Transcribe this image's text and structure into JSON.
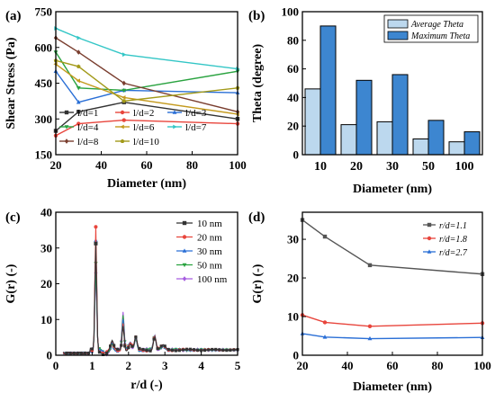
{
  "chart_data": [
    {
      "panel": "(a)",
      "type": "line",
      "xlabel": "Diameter (nm)",
      "ylabel": "Shear Stress (Pa)",
      "xlim": [
        20,
        100
      ],
      "ylim": [
        150,
        750
      ],
      "xticks": [
        20,
        40,
        60,
        80,
        100
      ],
      "yticks": [
        150,
        300,
        450,
        600,
        750
      ],
      "legend_ncol": 3,
      "x": [
        20,
        30,
        50,
        100
      ],
      "series": [
        {
          "name": "l/d=1",
          "color": "#333333",
          "marker": "square",
          "values": [
            250,
            330,
            370,
            300
          ]
        },
        {
          "name": "l/d=2",
          "color": "#e8453c",
          "marker": "circle",
          "values": [
            230,
            280,
            295,
            280
          ]
        },
        {
          "name": "l/d=3",
          "color": "#2a6fd6",
          "marker": "triangle",
          "values": [
            500,
            370,
            420,
            410
          ]
        },
        {
          "name": "l/d=4",
          "color": "#2aa340",
          "marker": "triangle-down",
          "values": [
            580,
            430,
            420,
            500
          ]
        },
        {
          "name": "l/d=6",
          "color": "#c49a1e",
          "marker": "triangle-left",
          "values": [
            530,
            460,
            390,
            320
          ]
        },
        {
          "name": "l/d=7",
          "color": "#33c6c6",
          "marker": "triangle-right",
          "values": [
            680,
            640,
            570,
            510
          ]
        },
        {
          "name": "l/d=8",
          "color": "#7a3e2f",
          "marker": "diamond",
          "values": [
            640,
            580,
            450,
            330
          ]
        },
        {
          "name": "l/d=10",
          "color": "#a39a1a",
          "marker": "pentagon",
          "values": [
            545,
            520,
            375,
            430
          ]
        }
      ]
    },
    {
      "panel": "(b)",
      "type": "bar",
      "xlabel": "Diameter (nm)",
      "ylabel": "Theta (degree)",
      "categories": [
        "10",
        "20",
        "30",
        "50",
        "100"
      ],
      "ylim": [
        0,
        100
      ],
      "yticks": [
        0,
        20,
        40,
        60,
        80,
        100
      ],
      "series": [
        {
          "name": "Average Theta",
          "color": "#bcd8ee",
          "values": [
            46,
            21,
            23,
            11,
            9
          ]
        },
        {
          "name": "Maximum Theta",
          "color": "#3d86d0",
          "values": [
            90,
            52,
            56,
            24,
            16
          ]
        }
      ]
    },
    {
      "panel": "(c)",
      "type": "line",
      "xlabel": "r/d (-)",
      "ylabel": "G(r) (-)",
      "xlim": [
        0,
        5
      ],
      "ylim": [
        0,
        40
      ],
      "xticks": [
        0,
        1,
        2,
        3,
        4,
        5
      ],
      "yticks": [
        0,
        10,
        20,
        30,
        40
      ],
      "series": [
        {
          "name": "10 nm",
          "color": "#333333",
          "marker": "square",
          "peak": 30
        },
        {
          "name": "20 nm",
          "color": "#e8453c",
          "marker": "circle",
          "peak": 35
        },
        {
          "name": "30 nm",
          "color": "#2a6fd6",
          "marker": "triangle",
          "peak": 31
        },
        {
          "name": "50 nm",
          "color": "#2aa340",
          "marker": "triangle-down",
          "peak": 24
        },
        {
          "name": "100 nm",
          "color": "#a65ce0",
          "marker": "diamond",
          "peak": 21
        }
      ]
    },
    {
      "panel": "(d)",
      "type": "line",
      "xlabel": "Diameter (nm)",
      "ylabel": "G(r) (-)",
      "xlim": [
        20,
        100
      ],
      "ylim": [
        0,
        37
      ],
      "xticks": [
        20,
        40,
        60,
        80,
        100
      ],
      "yticks": [
        0,
        10,
        20,
        30
      ],
      "x": [
        20,
        30,
        50,
        100
      ],
      "series": [
        {
          "name": "r/d=1.1",
          "color": "#555555",
          "marker": "square",
          "values": [
            35,
            30.7,
            23.3,
            21
          ]
        },
        {
          "name": "r/d=1.8",
          "color": "#e8453c",
          "marker": "circle",
          "values": [
            10.4,
            8.5,
            7.5,
            8.3
          ]
        },
        {
          "name": "r/d=2.7",
          "color": "#2a6fd6",
          "marker": "triangle",
          "values": [
            5.6,
            4.7,
            4.3,
            4.6
          ]
        }
      ]
    }
  ]
}
